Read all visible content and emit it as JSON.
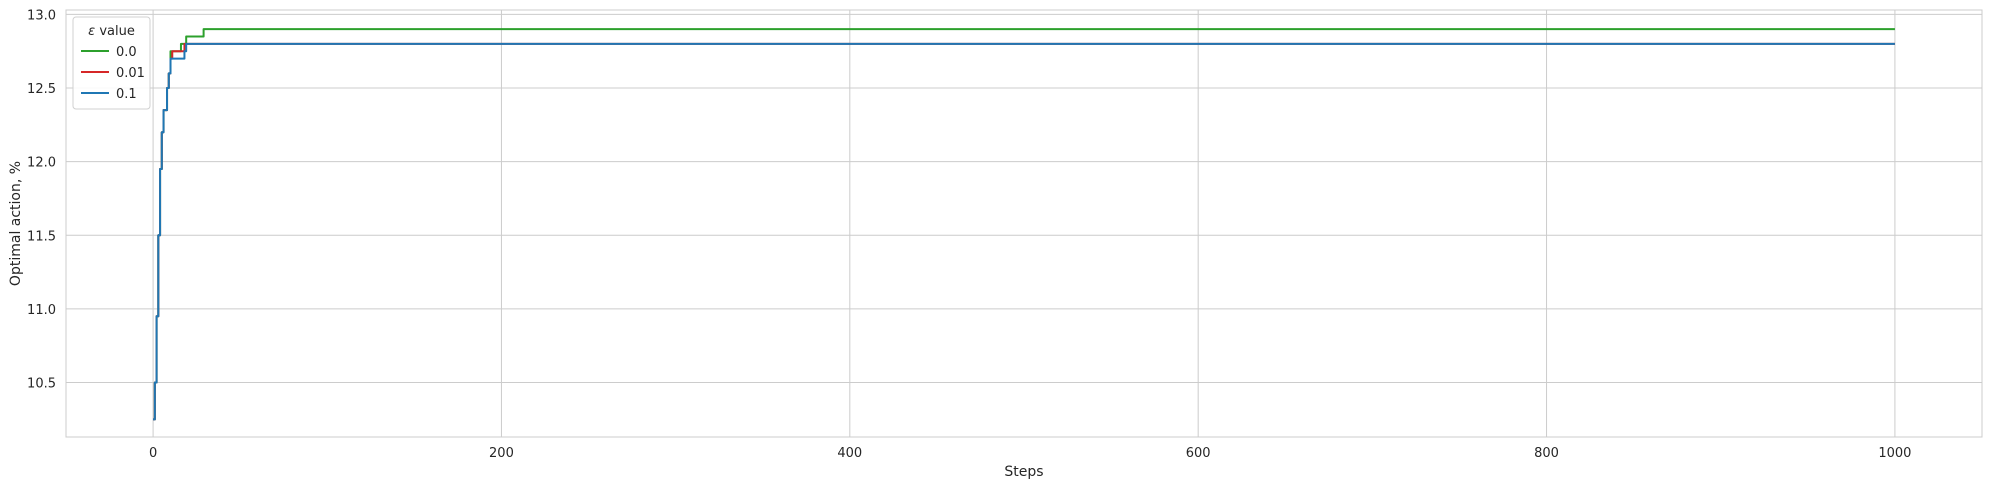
{
  "chart_data": {
    "type": "line",
    "title": "",
    "xlabel": "Steps",
    "ylabel": "Optimal action, %",
    "xlim": [
      -50,
      1050
    ],
    "ylim": [
      10.13,
      13.03
    ],
    "xticks": [
      0,
      200,
      400,
      600,
      800,
      1000
    ],
    "yticks": [
      10.5,
      11.0,
      11.5,
      12.0,
      12.5,
      13.0
    ],
    "xtick_labels": [
      "0",
      "200",
      "400",
      "600",
      "800",
      "1000"
    ],
    "ytick_labels": [
      "10.5",
      "11.0",
      "11.5",
      "12.0",
      "12.5",
      "13.0"
    ],
    "grid": true,
    "legend": {
      "title_symbol": "ε",
      "title_text": " value",
      "placement": "top-left"
    },
    "series": [
      {
        "name": "0.0",
        "color": "#2ca02c",
        "x": [
          0,
          1,
          2,
          3,
          4,
          5,
          6,
          7,
          8,
          9,
          10,
          11,
          12,
          13,
          14,
          15,
          16,
          17,
          18,
          19,
          20,
          21,
          22,
          23,
          24,
          25,
          26,
          27,
          28,
          29,
          30,
          1000
        ],
        "y": [
          10.25,
          10.5,
          10.95,
          11.5,
          11.95,
          12.2,
          12.35,
          12.35,
          12.5,
          12.6,
          12.75,
          12.75,
          12.75,
          12.75,
          12.75,
          12.75,
          12.8,
          12.8,
          12.8,
          12.85,
          12.85,
          12.85,
          12.85,
          12.85,
          12.85,
          12.85,
          12.85,
          12.85,
          12.85,
          12.9,
          12.9,
          12.9
        ]
      },
      {
        "name": "0.01",
        "color": "#d62728",
        "x": [
          0,
          1,
          2,
          3,
          4,
          5,
          6,
          7,
          8,
          9,
          10,
          11,
          12,
          13,
          14,
          15,
          16,
          17,
          18,
          19,
          20,
          1000
        ],
        "y": [
          10.25,
          10.5,
          10.95,
          11.5,
          11.95,
          12.2,
          12.35,
          12.35,
          12.5,
          12.6,
          12.7,
          12.75,
          12.75,
          12.75,
          12.75,
          12.75,
          12.75,
          12.75,
          12.8,
          12.8,
          12.8,
          12.8
        ]
      },
      {
        "name": "0.1",
        "color": "#1f77b4",
        "x": [
          0,
          1,
          2,
          3,
          4,
          5,
          6,
          7,
          8,
          9,
          10,
          11,
          12,
          13,
          14,
          15,
          16,
          17,
          18,
          19,
          20,
          1000
        ],
        "y": [
          10.25,
          10.5,
          10.95,
          11.5,
          11.95,
          12.2,
          12.35,
          12.35,
          12.5,
          12.6,
          12.7,
          12.7,
          12.7,
          12.7,
          12.7,
          12.7,
          12.7,
          12.7,
          12.75,
          12.8,
          12.8,
          12.8
        ]
      }
    ]
  }
}
